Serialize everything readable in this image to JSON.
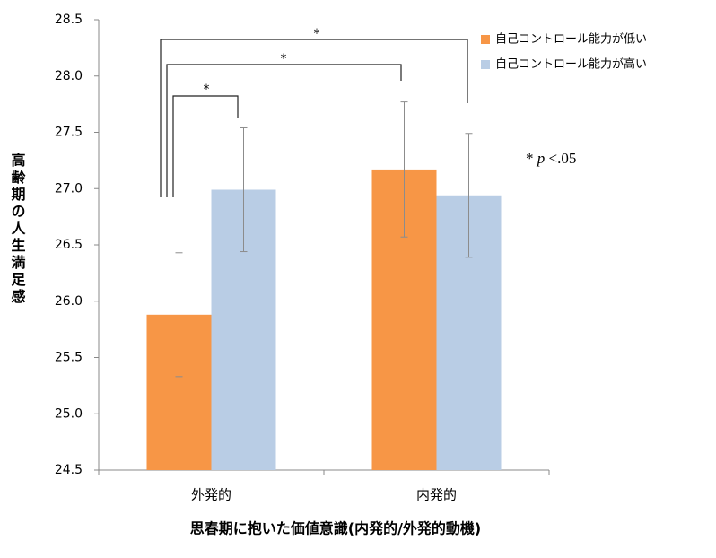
{
  "chart_data": {
    "type": "bar",
    "categories": [
      "外発的",
      "内発的"
    ],
    "series": [
      {
        "name": "自己コントロール能力が低い",
        "color": "#f79646",
        "values": [
          25.88,
          27.17
        ],
        "errors": [
          0.55,
          0.6
        ]
      },
      {
        "name": "自己コントロール能力が高い",
        "color": "#b9cde5",
        "values": [
          26.99,
          26.94
        ],
        "errors": [
          0.55,
          0.55
        ]
      }
    ],
    "ylim": [
      24.5,
      28.5
    ],
    "yticks": [
      24.5,
      {
        "value": 25,
        "label": "25.0"
      },
      25.5,
      {
        "value": 26,
        "label": "26.0"
      },
      26.5,
      {
        "value": 27,
        "label": "27.0"
      },
      27.5,
      {
        "value": 28,
        "label": "28.0"
      },
      28.5
    ],
    "y_label": "高齢期の人生満足感",
    "x_label": "思春期に抱いた価値意識(内発的/外発的動機)",
    "annotations": [
      "*",
      "*",
      "*"
    ],
    "note": {
      "mark": "*",
      "p": "p",
      "rest": "<.05"
    },
    "legend": "upper right",
    "grid": false
  }
}
